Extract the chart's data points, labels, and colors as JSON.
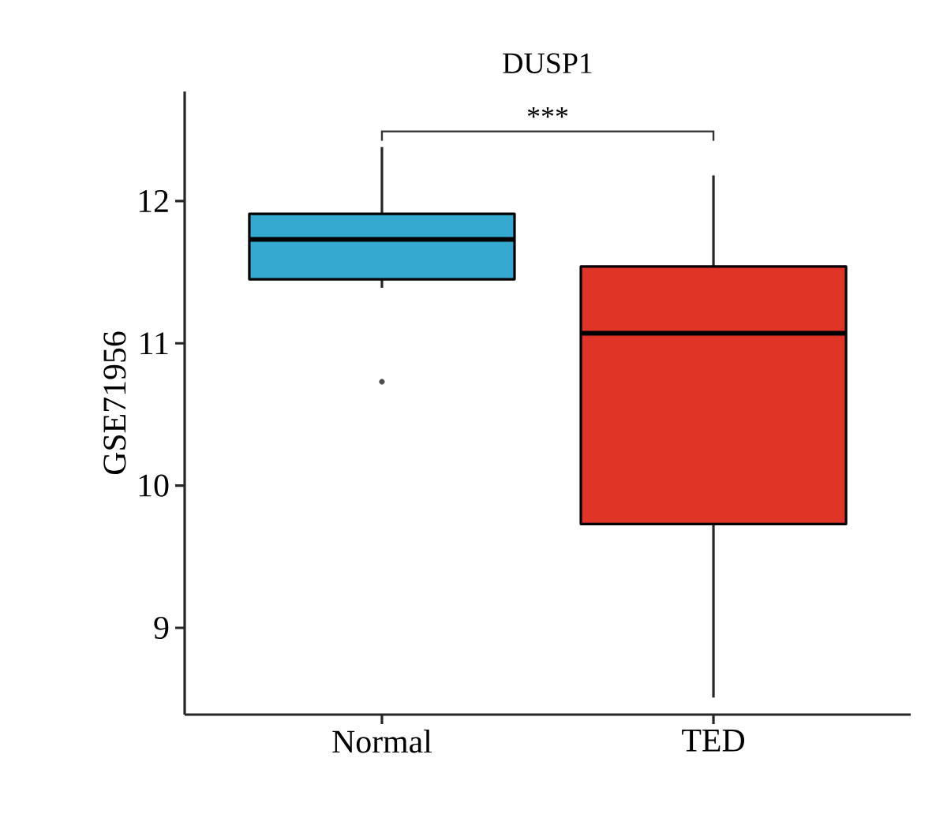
{
  "chart_data": {
    "type": "box",
    "title": "DUSP1",
    "ylabel": "GSE71956",
    "categories": [
      "Normal",
      "TED"
    ],
    "colors": [
      "#35a9cf",
      "#e03426"
    ],
    "boxes": [
      {
        "low": 11.39,
        "q1": 11.45,
        "median": 11.73,
        "q3": 11.91,
        "high": 12.38,
        "outliers": [
          10.73
        ]
      },
      {
        "low": 8.51,
        "q1": 9.73,
        "median": 11.07,
        "q3": 11.54,
        "high": 12.18
      }
    ],
    "ylim": [
      8.39,
      12.77
    ],
    "yticks": [
      9,
      10,
      11,
      12
    ],
    "annotations": [
      "***"
    ]
  }
}
